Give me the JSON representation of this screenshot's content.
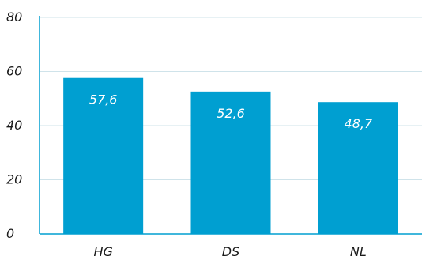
{
  "chart_data": {
    "type": "bar",
    "categories": [
      "HG",
      "DS",
      "NL"
    ],
    "values": [
      57.6,
      52.6,
      48.7
    ],
    "value_labels": [
      "57,6",
      "52,6",
      "48,7"
    ],
    "ylim": [
      0,
      80
    ],
    "yticks": [
      0,
      20,
      40,
      60,
      80
    ],
    "ytick_labels": [
      "0",
      "20",
      "40",
      "60",
      "80"
    ],
    "grid": true,
    "bar_color": "#009fd1",
    "axis_color": "#009fd1",
    "grid_color": "#cfe3ea"
  }
}
